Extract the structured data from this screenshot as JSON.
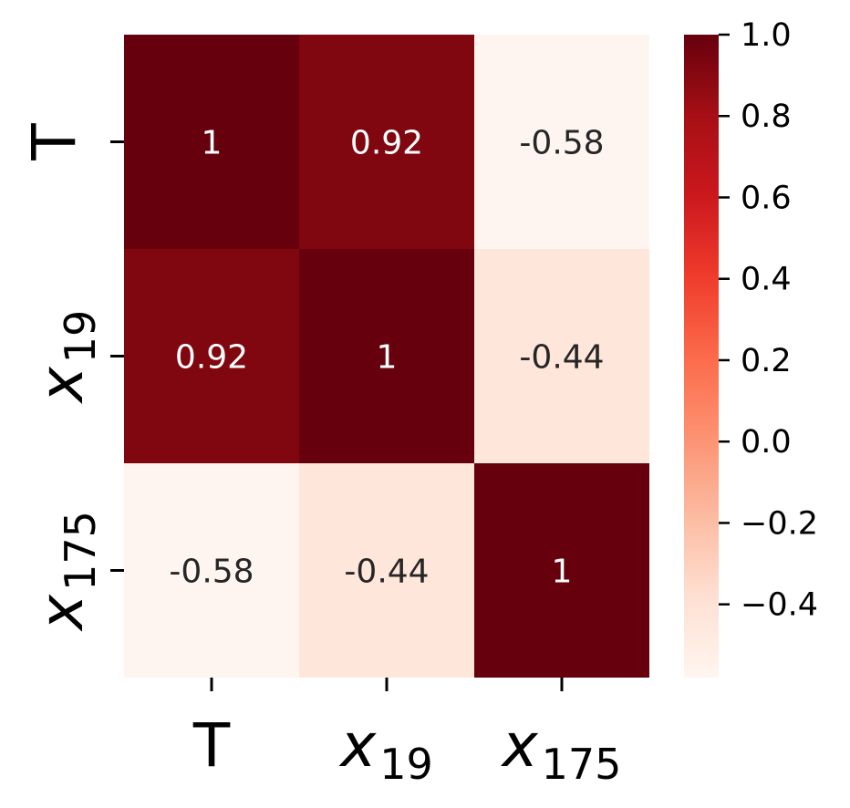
{
  "chart_data": {
    "type": "heatmap",
    "colormap": "Reds",
    "rows": [
      {
        "base": "T",
        "sub": "",
        "italic": false
      },
      {
        "base": "x",
        "sub": "19",
        "italic": true
      },
      {
        "base": "x",
        "sub": "175",
        "italic": true
      }
    ],
    "columns": [
      {
        "base": "T",
        "sub": "",
        "italic": false
      },
      {
        "base": "x",
        "sub": "19",
        "italic": true
      },
      {
        "base": "x",
        "sub": "175",
        "italic": true
      }
    ],
    "values": [
      [
        1,
        0.92,
        -0.58
      ],
      [
        0.92,
        1,
        -0.44
      ],
      [
        -0.58,
        -0.44,
        1
      ]
    ],
    "annotations": [
      [
        "1",
        "0.92",
        "-0.58"
      ],
      [
        "0.92",
        "1",
        "-0.44"
      ],
      [
        "-0.58",
        "-0.44",
        "1"
      ]
    ],
    "colorbar": {
      "vmin": -0.58,
      "vmax": 1.0,
      "ticks": [
        1.0,
        0.8,
        0.6,
        0.4,
        0.2,
        0.0,
        -0.2,
        -0.4
      ],
      "tick_labels": [
        "1.0",
        "0.8",
        "0.6",
        "0.4",
        "0.2",
        "0.0",
        "−0.2",
        "−0.4"
      ]
    }
  }
}
